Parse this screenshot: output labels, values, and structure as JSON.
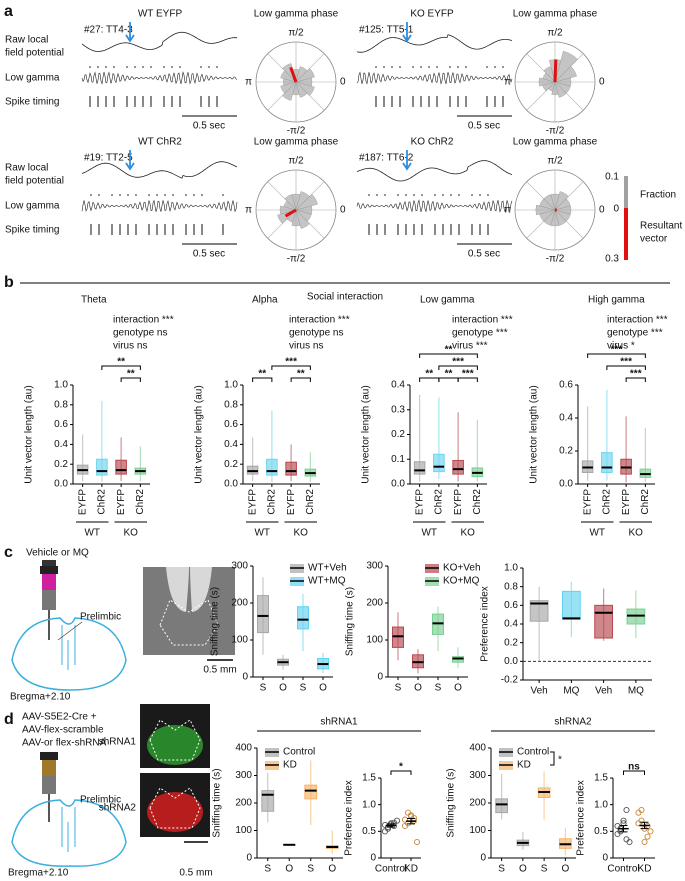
{
  "panel_labels": [
    "a",
    "b",
    "c",
    "d"
  ],
  "panel_a": {
    "units": [
      {
        "group": "WT EYFP",
        "color": "#222222",
        "unit": "#27: TT4-3",
        "phase_title": "Low gamma phase",
        "scale_bar": "0.5 sec",
        "phase_fractions": [
          0.05,
          0.06,
          0.05,
          0.04,
          0.06,
          0.05,
          0.04,
          0.05,
          0.06,
          0.04,
          0.05,
          0.06
        ],
        "resultant_phase_deg": 110,
        "resultant_length": 0.09
      },
      {
        "group": "KO EYFP",
        "color": "#c00000",
        "unit": "#125: TT5-1",
        "phase_title": "Low gamma phase",
        "scale_bar": "0.5 sec",
        "phase_fractions": [
          0.05,
          0.07,
          0.1,
          0.07,
          0.05,
          0.04,
          0.05,
          0.04,
          0.03,
          0.04,
          0.05,
          0.05
        ],
        "resultant_phase_deg": 88,
        "resultant_length": 0.13
      },
      {
        "group": "WT ChR2",
        "color": "#31b9e8",
        "unit": "#19: TT2-5",
        "phase_title": "Low gamma phase",
        "scale_bar": "0.5 sec",
        "phase_fractions": [
          0.05,
          0.07,
          0.06,
          0.05,
          0.05,
          0.04,
          0.05,
          0.06,
          0.04,
          0.05,
          0.06,
          0.05
        ],
        "resultant_phase_deg": 210,
        "resultant_length": 0.07
      },
      {
        "group": "KO ChR2",
        "color": "#33b04a",
        "unit": "#187: TT6-2",
        "phase_title": "Low gamma phase",
        "scale_bar": "0.5 sec",
        "phase_fractions": [
          0.05,
          0.05,
          0.06,
          0.05,
          0.05,
          0.05,
          0.06,
          0.05,
          0.05,
          0.05,
          0.05,
          0.05
        ],
        "resultant_phase_deg": 0,
        "resultant_length": 0.01
      }
    ],
    "row_labels": {
      "raw": [
        "Raw local",
        "field potential"
      ],
      "low_gamma": "Low gamma",
      "spikes": "Spike timing"
    },
    "phase_ticks": {
      "top": "π/2",
      "left": "π",
      "right": "0",
      "bottom": "-π/2"
    },
    "legend": {
      "fraction_max": 0.1,
      "fraction_title": "Fraction",
      "zero": 0,
      "vector_title": [
        "Resultant",
        "vector"
      ],
      "vector_max": 0.3
    }
  },
  "panel_b": {
    "title": "Social interaction"
  },
  "panel_c": {
    "injection": "Vehicle or MQ",
    "region": "Prelimbic",
    "bregma": "Bregma+2.10",
    "scale_bar": "0.5 mm"
  },
  "panel_d": {
    "injection": [
      "AAV-S5E2-Cre +",
      "AAV-flex-scramble",
      "AAV-or flex-shRNA"
    ],
    "region": "Prelimbic",
    "bregma": "Bregma+2.10",
    "images": [
      "shRNA1",
      "shRNA2"
    ],
    "scale_bar": "0.5 mm"
  },
  "chart_data": [
    {
      "type": "box",
      "title": "Theta",
      "annotations": [
        "interaction ***",
        "genotype ns",
        "virus ns"
      ],
      "ylabel": "Unit vector length (au)",
      "ylim": [
        0,
        1
      ],
      "yticks": [
        {
          "value": 0,
          "label": "0.0"
        },
        0.2,
        0.4,
        0.6,
        0.8,
        {
          "value": 1,
          "label": "1.0"
        }
      ],
      "categories": [
        "EYFP",
        "ChR2",
        "EYFP",
        "ChR2"
      ],
      "groups": [
        "WT",
        "KO"
      ],
      "series": [
        {
          "color": "#a6a6a6",
          "min": [
            0.03
          ],
          "q1": [
            0.1
          ],
          "median": [
            0.14
          ],
          "q3": [
            0.19
          ],
          "max": [
            0.5
          ]
        },
        {
          "color": "#6dd4f0",
          "min": [
            0.02
          ],
          "q1": [
            0.09
          ],
          "median": [
            0.13
          ],
          "q3": [
            0.25
          ],
          "max": [
            0.84
          ]
        },
        {
          "color": "#b5474f",
          "min": [
            0.03
          ],
          "q1": [
            0.1
          ],
          "median": [
            0.14
          ],
          "q3": [
            0.24
          ],
          "max": [
            0.47
          ]
        },
        {
          "color": "#7ccf93",
          "min": [
            0.03
          ],
          "q1": [
            0.1
          ],
          "median": [
            0.13
          ],
          "q3": [
            0.16
          ],
          "max": [
            0.38
          ]
        }
      ],
      "brackets": [
        {
          "pair": [
            2,
            3
          ],
          "label": "**"
        },
        {
          "pair": [
            1,
            3
          ],
          "label": "**"
        }
      ]
    },
    {
      "type": "box",
      "title": "Alpha",
      "annotations": [
        "interaction ***",
        "genotype ns",
        "virus ns"
      ],
      "ylabel": "Unit vector length (au)",
      "ylim": [
        0,
        1
      ],
      "yticks": [
        {
          "value": 0,
          "label": "0.0"
        },
        0.2,
        0.4,
        0.6,
        0.8,
        {
          "value": 1,
          "label": "1.0"
        }
      ],
      "categories": [
        "EYFP",
        "ChR2",
        "EYFP",
        "ChR2"
      ],
      "groups": [
        "WT",
        "KO"
      ],
      "series": [
        {
          "color": "#a6a6a6",
          "min": [
            0.03
          ],
          "q1": [
            0.1
          ],
          "median": [
            0.13
          ],
          "q3": [
            0.18
          ],
          "max": [
            0.47
          ]
        },
        {
          "color": "#6dd4f0",
          "min": [
            0.02
          ],
          "q1": [
            0.09
          ],
          "median": [
            0.13
          ],
          "q3": [
            0.25
          ],
          "max": [
            0.74
          ]
        },
        {
          "color": "#b5474f",
          "min": [
            0.03
          ],
          "q1": [
            0.09
          ],
          "median": [
            0.13
          ],
          "q3": [
            0.22
          ],
          "max": [
            0.4
          ]
        },
        {
          "color": "#7ccf93",
          "min": [
            0.02
          ],
          "q1": [
            0.08
          ],
          "median": [
            0.11
          ],
          "q3": [
            0.15
          ],
          "max": [
            0.32
          ]
        }
      ],
      "brackets": [
        {
          "pair": [
            2,
            3
          ],
          "label": "**"
        },
        {
          "pair": [
            0,
            1
          ],
          "label": "**"
        },
        {
          "pair": [
            1,
            3
          ],
          "label": "***"
        }
      ]
    },
    {
      "type": "box",
      "title": "Low gamma",
      "annotations": [
        "interaction ***",
        "genotype ***",
        "virus ***"
      ],
      "ylabel": "Unit vector length (au)",
      "ylim": [
        0,
        0.4
      ],
      "yticks": [
        {
          "value": 0,
          "label": "0.0"
        },
        0.1,
        0.2,
        0.3,
        0.4
      ],
      "categories": [
        "EYFP",
        "ChR2",
        "EYFP",
        "ChR2"
      ],
      "groups": [
        "WT",
        "KO"
      ],
      "series": [
        {
          "color": "#a6a6a6",
          "min": [
            0.01
          ],
          "q1": [
            0.04
          ],
          "median": [
            0.055
          ],
          "q3": [
            0.09
          ],
          "max": [
            0.36
          ]
        },
        {
          "color": "#6dd4f0",
          "min": [
            0.02
          ],
          "q1": [
            0.05
          ],
          "median": [
            0.07
          ],
          "q3": [
            0.12
          ],
          "max": [
            0.35
          ]
        },
        {
          "color": "#b5474f",
          "min": [
            0.01
          ],
          "q1": [
            0.04
          ],
          "median": [
            0.06
          ],
          "q3": [
            0.095
          ],
          "max": [
            0.29
          ]
        },
        {
          "color": "#7ccf93",
          "min": [
            0.01
          ],
          "q1": [
            0.03
          ],
          "median": [
            0.045
          ],
          "q3": [
            0.065
          ],
          "max": [
            0.26
          ]
        }
      ],
      "brackets": [
        {
          "pair": [
            1,
            2
          ],
          "label": "**"
        },
        {
          "pair": [
            2,
            3
          ],
          "label": "***"
        },
        {
          "pair": [
            0,
            1
          ],
          "label": "**"
        },
        {
          "pair": [
            1,
            3
          ],
          "label": "***"
        },
        {
          "pair": [
            0,
            3
          ],
          "label": "**"
        }
      ]
    },
    {
      "type": "box",
      "title": "High gamma",
      "annotations": [
        "interaction ***",
        "genotype ***",
        "virus *"
      ],
      "ylabel": "Unit vector length (au)",
      "ylim": [
        0,
        0.6
      ],
      "yticks": [
        {
          "value": 0,
          "label": "0.0"
        },
        0.2,
        0.4,
        0.6
      ],
      "categories": [
        "EYFP",
        "ChR2",
        "EYFP",
        "ChR2"
      ],
      "groups": [
        "WT",
        "KO"
      ],
      "series": [
        {
          "color": "#a6a6a6",
          "min": [
            0.02
          ],
          "q1": [
            0.07
          ],
          "median": [
            0.1
          ],
          "q3": [
            0.14
          ],
          "max": [
            0.47
          ]
        },
        {
          "color": "#6dd4f0",
          "min": [
            0.02
          ],
          "q1": [
            0.07
          ],
          "median": [
            0.1
          ],
          "q3": [
            0.19
          ],
          "max": [
            0.57
          ]
        },
        {
          "color": "#b5474f",
          "min": [
            0.01
          ],
          "q1": [
            0.06
          ],
          "median": [
            0.1
          ],
          "q3": [
            0.15
          ],
          "max": [
            0.41
          ]
        },
        {
          "color": "#7ccf93",
          "min": [
            0.01
          ],
          "q1": [
            0.04
          ],
          "median": [
            0.06
          ],
          "q3": [
            0.09
          ],
          "max": [
            0.34
          ]
        }
      ],
      "brackets": [
        {
          "pair": [
            2,
            3
          ],
          "label": "***"
        },
        {
          "pair": [
            1,
            3
          ],
          "label": "***"
        },
        {
          "pair": [
            0,
            3
          ],
          "label": "***"
        }
      ]
    },
    {
      "type": "box",
      "ylabel": "Sniffing time (s)",
      "ylim": [
        0,
        300
      ],
      "yticks": [
        0,
        100,
        200,
        300
      ],
      "categories": [
        "S",
        "O",
        "S",
        "O"
      ],
      "series": [
        {
          "name": "WT+Veh",
          "color": "#a6a6a6",
          "min": [
            60,
            20
          ],
          "q1": [
            120,
            32
          ],
          "median": [
            165,
            40
          ],
          "q3": [
            220,
            48
          ],
          "max": [
            270,
            60
          ]
        },
        {
          "name": "WT+MQ",
          "color": "#62d2f0",
          "min": [
            70,
            10
          ],
          "q1": [
            130,
            22
          ],
          "median": [
            155,
            35
          ],
          "q3": [
            190,
            50
          ],
          "max": [
            225,
            65
          ]
        }
      ]
    },
    {
      "type": "box",
      "ylabel": "Sniffing time (s)",
      "ylim": [
        0,
        300
      ],
      "yticks": [
        0,
        100,
        200,
        300
      ],
      "categories": [
        "S",
        "O",
        "S",
        "O"
      ],
      "series": [
        {
          "name": "KO+Veh",
          "color": "#b5474f",
          "min": [
            45,
            10
          ],
          "q1": [
            80,
            25
          ],
          "median": [
            110,
            40
          ],
          "q3": [
            135,
            60
          ],
          "max": [
            175,
            75
          ]
        },
        {
          "name": "KO+MQ",
          "color": "#78cf90",
          "min": [
            70,
            25
          ],
          "q1": [
            115,
            40
          ],
          "median": [
            145,
            50
          ],
          "q3": [
            170,
            55
          ],
          "max": [
            190,
            80
          ]
        }
      ]
    },
    {
      "type": "box",
      "ylabel": "Preference index",
      "ylim": [
        -0.2,
        1
      ],
      "yticks": [
        -0.2,
        {
          "value": 0,
          "label": "0.0"
        },
        0.2,
        0.4,
        0.6,
        0.8,
        {
          "value": 1,
          "label": "1.0"
        }
      ],
      "reference_line": 0,
      "categories": [
        "Veh",
        "MQ",
        "Veh",
        "MQ"
      ],
      "series": [
        {
          "color": "#a6a6a6",
          "min": [
            0
          ],
          "q1": [
            0.43
          ],
          "median": [
            0.62
          ],
          "q3": [
            0.65
          ],
          "max": [
            0.8
          ]
        },
        {
          "color": "#62d2f0",
          "min": [
            0.26
          ],
          "q1": [
            0.45
          ],
          "median": [
            0.46
          ],
          "q3": [
            0.75
          ],
          "max": [
            0.85
          ]
        },
        {
          "color": "#b5474f",
          "min": [
            0.22
          ],
          "q1": [
            0.25
          ],
          "median": [
            0.52
          ],
          "q3": [
            0.6
          ],
          "max": [
            0.78
          ]
        },
        {
          "color": "#78cf90",
          "min": [
            0.25
          ],
          "q1": [
            0.4
          ],
          "median": [
            0.49
          ],
          "q3": [
            0.56
          ],
          "max": [
            0.76
          ]
        }
      ]
    },
    {
      "type": "box",
      "title": "shRNA1",
      "ylabel": "Sniffing time (s)",
      "ylim": [
        0,
        400
      ],
      "yticks": [
        0,
        100,
        200,
        300,
        400
      ],
      "categories": [
        "S",
        "O",
        "S",
        "O"
      ],
      "series": [
        {
          "name": "Control",
          "color": "#a6a6a6",
          "min": [
            130,
            45
          ],
          "q1": [
            170,
            47
          ],
          "median": [
            230,
            48
          ],
          "q3": [
            245,
            49
          ],
          "max": [
            310,
            50
          ]
        },
        {
          "name": "KD",
          "color": "#f5b36a",
          "min": [
            120,
            15
          ],
          "q1": [
            215,
            35
          ],
          "median": [
            245,
            40
          ],
          "q3": [
            265,
            45
          ],
          "max": [
            355,
            100
          ]
        }
      ]
    },
    {
      "type": "strip",
      "ylabel": "Preference index",
      "ylim": [
        0,
        1.5
      ],
      "yticks": [
        0,
        0.5,
        {
          "value": 1,
          "label": "1.0"
        },
        1.5
      ],
      "categories": [
        "Control",
        "KD"
      ],
      "series": [
        {
          "color": "#555555",
          "values": [
            0.62,
            0.55,
            0.65,
            0.6,
            0.7,
            0.5,
            0.58,
            0.63,
            0.66
          ],
          "mean": 0.61,
          "sem": 0.03
        },
        {
          "color": "#c8893a",
          "values": [
            0.72,
            0.85,
            0.78,
            0.7,
            0.3,
            0.6,
            0.65,
            0.8,
            0.75
          ],
          "mean": 0.69,
          "sem": 0.05
        }
      ],
      "brackets": [
        {
          "pair": [
            0,
            1
          ],
          "label": "*"
        }
      ]
    },
    {
      "type": "box",
      "title": "shRNA2",
      "legend_annotation": "*",
      "ylabel": "Sniffing time (s)",
      "ylim": [
        0,
        400
      ],
      "yticks": [
        0,
        100,
        200,
        300,
        400
      ],
      "categories": [
        "S",
        "O",
        "S",
        "O"
      ],
      "series": [
        {
          "name": "Control",
          "color": "#a6a6a6",
          "min": [
            140,
            30
          ],
          "q1": [
            165,
            45
          ],
          "median": [
            195,
            55
          ],
          "q3": [
            215,
            65
          ],
          "max": [
            305,
            95
          ]
        },
        {
          "name": "KD",
          "color": "#f5b36a",
          "min": [
            140,
            10
          ],
          "q1": [
            220,
            35
          ],
          "median": [
            240,
            50
          ],
          "q3": [
            255,
            70
          ],
          "max": [
            315,
            110
          ]
        }
      ]
    },
    {
      "type": "strip",
      "ylabel": "Preference index",
      "ylim": [
        0,
        1.5
      ],
      "yticks": [
        0,
        0.5,
        {
          "value": 1,
          "label": "1.0"
        },
        1.5
      ],
      "categories": [
        "Control",
        "KD"
      ],
      "series": [
        {
          "color": "#555555",
          "values": [
            0.45,
            0.55,
            0.65,
            0.9,
            0.3,
            0.6,
            0.5,
            0.7,
            0.35
          ],
          "mean": 0.55,
          "sem": 0.06
        },
        {
          "color": "#c8893a",
          "values": [
            0.85,
            0.9,
            0.55,
            0.4,
            0.5,
            0.65,
            0.7,
            0.3,
            0.6
          ],
          "mean": 0.61,
          "sem": 0.06
        }
      ],
      "brackets": [
        {
          "pair": [
            0,
            1
          ],
          "label": "ns"
        }
      ]
    }
  ]
}
